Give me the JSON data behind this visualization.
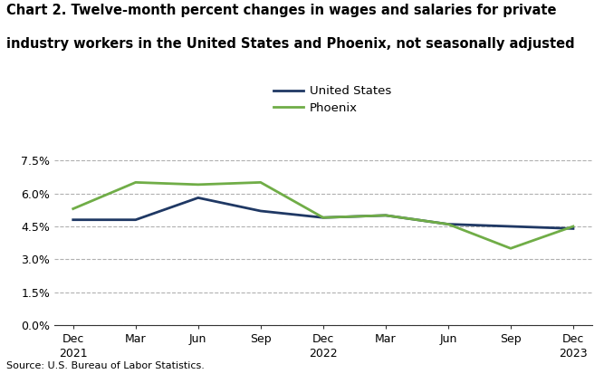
{
  "title_line1": "Chart 2. Twelve-month percent changes in wages and salaries for private",
  "title_line2": "industry workers in the United States and Phoenix, not seasonally adjusted",
  "source": "Source: U.S. Bureau of Labor Statistics.",
  "x_labels": [
    [
      "Dec",
      "2021"
    ],
    [
      "Mar",
      ""
    ],
    [
      "Jun",
      ""
    ],
    [
      "Sep",
      ""
    ],
    [
      "Dec",
      "2022"
    ],
    [
      "Mar",
      ""
    ],
    [
      "Jun",
      ""
    ],
    [
      "Sep",
      ""
    ],
    [
      "Dec",
      "2023"
    ]
  ],
  "us_values": [
    4.8,
    4.8,
    5.8,
    5.2,
    4.9,
    5.0,
    4.6,
    4.5,
    4.4
  ],
  "phoenix_values": [
    5.3,
    6.5,
    6.4,
    6.5,
    4.9,
    5.0,
    4.6,
    3.5,
    4.5
  ],
  "us_color": "#1f3864",
  "phoenix_color": "#70ad47",
  "ylim": [
    0.0,
    8.5
  ],
  "yticks": [
    0.0,
    1.5,
    3.0,
    4.5,
    6.0,
    7.5
  ],
  "ytick_labels": [
    "0.0%",
    "1.5%",
    "3.0%",
    "4.5%",
    "6.0%",
    "7.5%"
  ],
  "legend_labels": [
    "United States",
    "Phoenix"
  ],
  "line_width": 2.0,
  "background_color": "#ffffff",
  "grid_color": "#b0b0b0"
}
